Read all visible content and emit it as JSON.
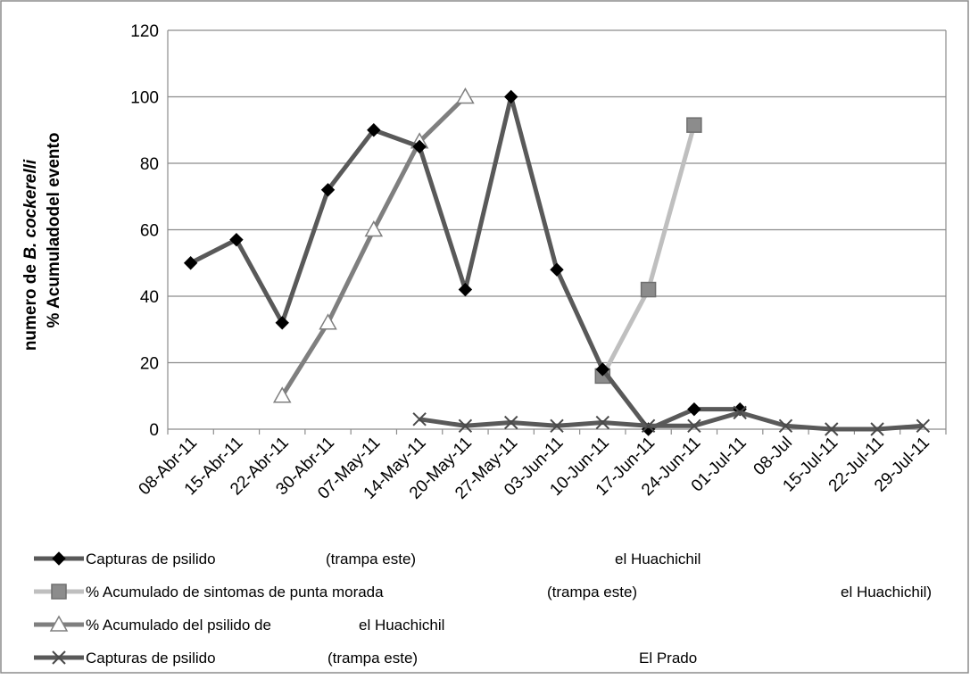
{
  "chart_data": {
    "type": "line",
    "ylabel": [
      "numero de B. cockerelli",
      "% Acumuladodel evento"
    ],
    "ylabel_parts": {
      "line1_plain": "numero de ",
      "line1_italic": "B. cockerelli",
      "line2": "% Acumuladodel evento"
    },
    "ylim": [
      0,
      120
    ],
    "yticks": [
      "0",
      "20",
      "40",
      "60",
      "80",
      "100",
      "120"
    ],
    "grid": true,
    "legend_position": "bottom",
    "categories": [
      "08-Abr-11",
      "15-Abr-11",
      "22-Abr-11",
      "30-Abr-11",
      "07-May-11",
      "14-May-11",
      "20-May-11",
      "27-May-11",
      "03-Jun-11",
      "10-Jun-11",
      "17-Jun-11",
      "24-Jun-11",
      "01-Jul-11",
      "08-Jul",
      "15-Jul-11",
      "22-Jul-11",
      "29-Jul-11"
    ],
    "series": [
      {
        "legend_parts": [
          "Capturas de psilido",
          "(trampa este)",
          "el Huachichil"
        ],
        "marker": "diamond",
        "color": "#595959",
        "values": [
          50,
          57,
          32,
          72,
          90,
          85,
          42,
          100,
          48,
          18,
          0,
          6,
          6,
          null,
          null,
          null,
          null
        ]
      },
      {
        "legend_parts": [
          "% Acumulado de sintomas de punta morada",
          "(trampa este)",
          "el Huachichil)"
        ],
        "marker": "square",
        "color": "#bfbfbf",
        "values": [
          null,
          null,
          null,
          null,
          null,
          null,
          null,
          null,
          null,
          16,
          42,
          91.5,
          null,
          null,
          null,
          null,
          null
        ]
      },
      {
        "legend_parts": [
          "% Acumulado del psilido  de",
          "el Huachichil"
        ],
        "marker": "triangle",
        "color": "#7f7f7f",
        "values": [
          null,
          null,
          10,
          32,
          60,
          86.5,
          100,
          null,
          null,
          null,
          null,
          null,
          null,
          null,
          null,
          null,
          null
        ]
      },
      {
        "legend_parts": [
          "Capturas de psilido",
          "(trampa este)",
          "El Prado"
        ],
        "marker": "x",
        "color": "#595959",
        "values": [
          null,
          null,
          null,
          null,
          null,
          3,
          1,
          2,
          1,
          2,
          1,
          1,
          5,
          1,
          0,
          0,
          1
        ]
      }
    ]
  }
}
